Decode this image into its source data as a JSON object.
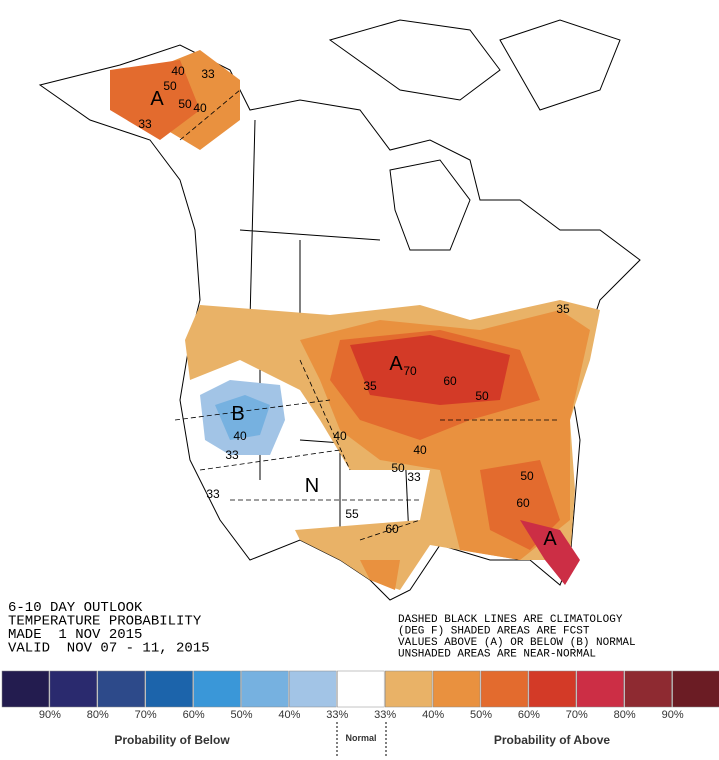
{
  "header": {
    "lines": [
      "6-10 DAY OUTLOOK",
      "TEMPERATURE PROBABILITY",
      "MADE  1 NOV 2015",
      "VALID  NOV 07 - 11, 2015"
    ]
  },
  "notes": [
    "DASHED BLACK LINES ARE CLIMATOLOGY",
    "(DEG F) SHADED AREAS ARE FCST",
    "VALUES ABOVE (A) OR BELOW (B) NORMAL",
    "UNSHADED AREAS ARE NEAR-NORMAL"
  ],
  "map": {
    "labels": [
      {
        "text": "A",
        "size": "big"
      },
      {
        "text": "40"
      },
      {
        "text": "33"
      },
      {
        "text": "50"
      },
      {
        "text": "50"
      },
      {
        "text": "40"
      },
      {
        "text": "33"
      },
      {
        "text": "B",
        "size": "big"
      },
      {
        "text": "40"
      },
      {
        "text": "33"
      },
      {
        "text": "33"
      },
      {
        "text": "N",
        "size": "big"
      },
      {
        "text": "A",
        "size": "big"
      },
      {
        "text": "70"
      },
      {
        "text": "35"
      },
      {
        "text": "60"
      },
      {
        "text": "50"
      },
      {
        "text": "40"
      },
      {
        "text": "40"
      },
      {
        "text": "50"
      },
      {
        "text": "33"
      },
      {
        "text": "55"
      },
      {
        "text": "60"
      },
      {
        "text": "50"
      },
      {
        "text": "60"
      },
      {
        "text": "A",
        "size": "big"
      },
      {
        "text": "35"
      }
    ]
  },
  "legend": {
    "colors": [
      "#231c4f",
      "#2a2a6e",
      "#2d4a8a",
      "#1c64ab",
      "#3a97d8",
      "#76b1e0",
      "#a2c4e6",
      "#ffffff",
      "#e9b267",
      "#e9913f",
      "#e36b2e",
      "#d33a27",
      "#cc2e45",
      "#8e2a31",
      "#6b1c24"
    ],
    "labels": [
      "90%",
      "80%",
      "70%",
      "60%",
      "50%",
      "40%",
      "33%",
      "33%",
      "40%",
      "50%",
      "60%",
      "70%",
      "80%",
      "90%"
    ],
    "below": "Probability of Below",
    "normal": "Normal",
    "above": "Probability of Above"
  }
}
